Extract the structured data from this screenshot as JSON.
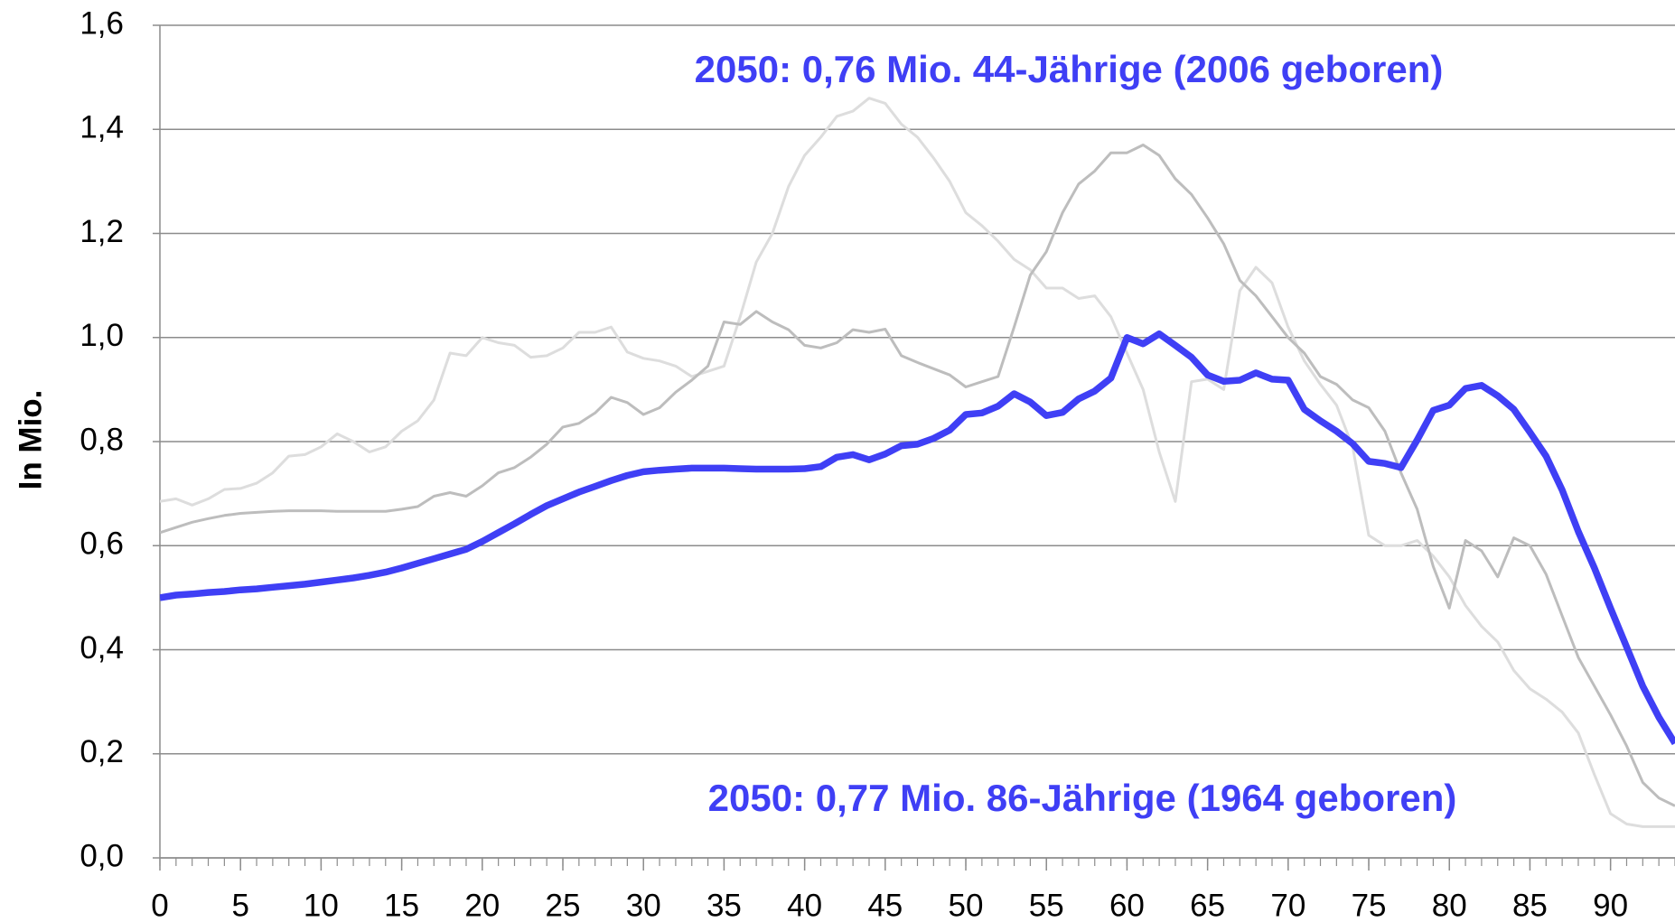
{
  "chart_data": {
    "type": "line",
    "ylabel": "In Mio.",
    "annotations": [
      "2050: 0,76 Mio. 44-Jährige (2006 geboren)",
      "2050: 0,77 Mio. 86-Jährige (1964 geboren)"
    ],
    "annotation_color": "#3f3ff5",
    "x": [
      0,
      1,
      2,
      3,
      4,
      5,
      6,
      7,
      8,
      9,
      10,
      11,
      12,
      13,
      14,
      15,
      16,
      17,
      18,
      19,
      20,
      21,
      22,
      23,
      24,
      25,
      26,
      27,
      28,
      29,
      30,
      31,
      32,
      33,
      34,
      35,
      36,
      37,
      38,
      39,
      40,
      41,
      42,
      43,
      44,
      45,
      46,
      47,
      48,
      49,
      50,
      51,
      52,
      53,
      54,
      55,
      56,
      57,
      58,
      59,
      60,
      61,
      62,
      63,
      64,
      65,
      66,
      67,
      68,
      69,
      70,
      71,
      72,
      73,
      74,
      75,
      76,
      77,
      78,
      79,
      80,
      81,
      82,
      83,
      84,
      85,
      86,
      87,
      88,
      89,
      90,
      91,
      92,
      93,
      94
    ],
    "series": [
      {
        "color": "#dddddd",
        "values": [
          0.685,
          0.69,
          0.678,
          0.69,
          0.708,
          0.71,
          0.72,
          0.74,
          0.772,
          0.775,
          0.79,
          0.815,
          0.8,
          0.78,
          0.79,
          0.82,
          0.84,
          0.88,
          0.97,
          0.965,
          1.0,
          0.99,
          0.985,
          0.962,
          0.965,
          0.98,
          1.01,
          1.01,
          1.02,
          0.972,
          0.96,
          0.955,
          0.945,
          0.925,
          0.935,
          0.945,
          1.04,
          1.145,
          1.2,
          1.29,
          1.35,
          1.385,
          1.425,
          1.435,
          1.46,
          1.45,
          1.41,
          1.385,
          1.345,
          1.3,
          1.24,
          1.215,
          1.185,
          1.15,
          1.13,
          1.095,
          1.095,
          1.075,
          1.08,
          1.04,
          0.97,
          0.9,
          0.78,
          0.685,
          0.915,
          0.92,
          0.9,
          1.09,
          1.135,
          1.105,
          1.02,
          0.955,
          0.91,
          0.87,
          0.79,
          0.62,
          0.6,
          0.6,
          0.61,
          0.58,
          0.54,
          0.485,
          0.445,
          0.415,
          0.36,
          0.325,
          0.305,
          0.28,
          0.24,
          0.16,
          0.085,
          0.065,
          0.06,
          0.06,
          0.06
        ]
      },
      {
        "color": "#bdbdbd",
        "values": [
          0.625,
          0.635,
          0.645,
          0.652,
          0.658,
          0.662,
          0.664,
          0.666,
          0.667,
          0.667,
          0.667,
          0.666,
          0.666,
          0.666,
          0.666,
          0.67,
          0.675,
          0.695,
          0.702,
          0.695,
          0.715,
          0.74,
          0.75,
          0.77,
          0.795,
          0.828,
          0.835,
          0.855,
          0.885,
          0.875,
          0.852,
          0.865,
          0.895,
          0.918,
          0.945,
          1.03,
          1.025,
          1.05,
          1.03,
          1.015,
          0.985,
          0.98,
          0.99,
          1.015,
          1.01,
          1.016,
          0.965,
          0.952,
          0.94,
          0.928,
          0.905,
          0.915,
          0.925,
          1.02,
          1.12,
          1.165,
          1.24,
          1.295,
          1.32,
          1.355,
          1.355,
          1.37,
          1.35,
          1.305,
          1.275,
          1.23,
          1.18,
          1.11,
          1.08,
          1.04,
          1.0,
          0.97,
          0.925,
          0.91,
          0.88,
          0.865,
          0.82,
          0.74,
          0.67,
          0.56,
          0.48,
          0.61,
          0.59,
          0.54,
          0.615,
          0.6,
          0.545,
          0.465,
          0.385,
          0.33,
          0.275,
          0.215,
          0.145,
          0.115,
          0.1
        ]
      },
      {
        "color": "#3f3ff5",
        "values": [
          0.5,
          0.505,
          0.507,
          0.51,
          0.512,
          0.515,
          0.517,
          0.52,
          0.523,
          0.526,
          0.53,
          0.534,
          0.538,
          0.543,
          0.549,
          0.557,
          0.566,
          0.575,
          0.584,
          0.593,
          0.608,
          0.625,
          0.642,
          0.66,
          0.677,
          0.69,
          0.703,
          0.714,
          0.725,
          0.735,
          0.742,
          0.745,
          0.747,
          0.749,
          0.749,
          0.749,
          0.748,
          0.747,
          0.747,
          0.747,
          0.748,
          0.752,
          0.77,
          0.775,
          0.765,
          0.776,
          0.792,
          0.795,
          0.806,
          0.822,
          0.852,
          0.855,
          0.868,
          0.892,
          0.876,
          0.85,
          0.856,
          0.882,
          0.897,
          0.922,
          1.0,
          0.988,
          1.007,
          0.985,
          0.962,
          0.928,
          0.916,
          0.918,
          0.932,
          0.92,
          0.918,
          0.862,
          0.84,
          0.82,
          0.796,
          0.762,
          0.758,
          0.75,
          0.803,
          0.86,
          0.87,
          0.902,
          0.908,
          0.888,
          0.862,
          0.818,
          0.772,
          0.707,
          0.627,
          0.557,
          0.48,
          0.405,
          0.33,
          0.27,
          0.22
        ]
      }
    ],
    "xlim": [
      0,
      94
    ],
    "xticks": [
      0,
      5,
      10,
      15,
      20,
      25,
      30,
      35,
      40,
      45,
      50,
      55,
      60,
      65,
      70,
      75,
      80,
      85,
      90
    ],
    "ylim": [
      0,
      1.6
    ],
    "yticks": [
      {
        "value": 0,
        "label": "0,0"
      },
      {
        "value": 0.2,
        "label": "0,2"
      },
      {
        "value": 0.4,
        "label": "0,4"
      },
      {
        "value": 0.6,
        "label": "0,6"
      },
      {
        "value": 0.8,
        "label": "0,8"
      },
      {
        "value": 1.0,
        "label": "1,0"
      },
      {
        "value": 1.2,
        "label": "1,2"
      },
      {
        "value": 1.4,
        "label": "1,4"
      },
      {
        "value": 1.6,
        "label": "1,6"
      }
    ],
    "grid": true
  }
}
